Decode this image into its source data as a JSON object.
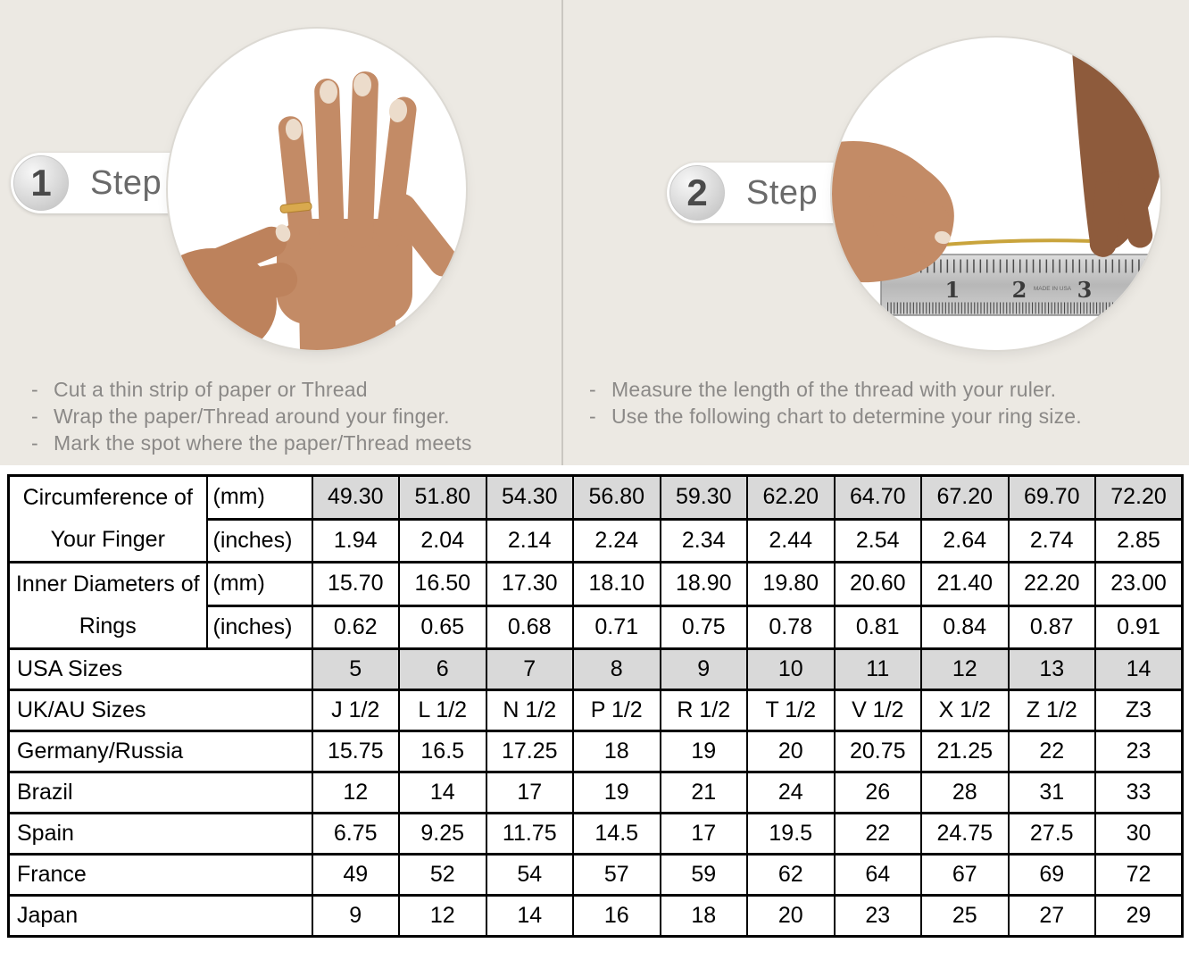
{
  "page": {
    "top_background": "#ece9e3",
    "divider_color": "#cac7c1",
    "shaded_cell_color": "#d9d9d9",
    "thread_gold_color": "#c9a43c"
  },
  "steps": [
    {
      "number": "1",
      "label": "Step",
      "photo": "hand-with-ring-being-measured",
      "bullets": [
        "Cut a thin strip of paper or Thread",
        "Wrap the paper/Thread around your finger.",
        "Mark the spot where the paper/Thread meets"
      ]
    },
    {
      "number": "2",
      "label": "Step",
      "photo": "measuring-thread-length-with-ruler",
      "ruler": {
        "numbers": [
          "1",
          "2",
          "3"
        ],
        "brand": "MADE IN USA"
      },
      "bullets": [
        "Measure the length of the thread with your ruler.",
        "Use the following chart to determine your ring size."
      ]
    }
  ],
  "table": {
    "rows": [
      {
        "group": "Circumference of Your Finger",
        "group_rowspan": 2,
        "unit": "(mm)",
        "shaded": true,
        "values": [
          "49.30",
          "51.80",
          "54.30",
          "56.80",
          "59.30",
          "62.20",
          "64.70",
          "67.20",
          "69.70",
          "72.20"
        ]
      },
      {
        "unit": "(inches)",
        "shaded": false,
        "values": [
          "1.94",
          "2.04",
          "2.14",
          "2.24",
          "2.34",
          "2.44",
          "2.54",
          "2.64",
          "2.74",
          "2.85"
        ]
      },
      {
        "group": "Inner Diameters of Rings",
        "group_rowspan": 2,
        "unit": "(mm)",
        "shaded": false,
        "values": [
          "15.70",
          "16.50",
          "17.30",
          "18.10",
          "18.90",
          "19.80",
          "20.60",
          "21.40",
          "22.20",
          "23.00"
        ]
      },
      {
        "unit": "(inches)",
        "shaded": false,
        "values": [
          "0.62",
          "0.65",
          "0.68",
          "0.71",
          "0.75",
          "0.78",
          "0.81",
          "0.84",
          "0.87",
          "0.91"
        ]
      },
      {
        "label": "USA Sizes",
        "shaded": true,
        "values": [
          "5",
          "6",
          "7",
          "8",
          "9",
          "10",
          "11",
          "12",
          "13",
          "14"
        ]
      },
      {
        "label": "UK/AU Sizes",
        "shaded": false,
        "values": [
          "J 1/2",
          "L 1/2",
          "N 1/2",
          "P 1/2",
          "R 1/2",
          "T 1/2",
          "V 1/2",
          "X 1/2",
          "Z 1/2",
          "Z3"
        ]
      },
      {
        "label": "Germany/Russia",
        "shaded": false,
        "values": [
          "15.75",
          "16.5",
          "17.25",
          "18",
          "19",
          "20",
          "20.75",
          "21.25",
          "22",
          "23"
        ]
      },
      {
        "label": "Brazil",
        "shaded": false,
        "values": [
          "12",
          "14",
          "17",
          "19",
          "21",
          "24",
          "26",
          "28",
          "31",
          "33"
        ]
      },
      {
        "label": "Spain",
        "shaded": false,
        "values": [
          "6.75",
          "9.25",
          "11.75",
          "14.5",
          "17",
          "19.5",
          "22",
          "24.75",
          "27.5",
          "30"
        ]
      },
      {
        "label": "France",
        "shaded": false,
        "values": [
          "49",
          "52",
          "54",
          "57",
          "59",
          "62",
          "64",
          "67",
          "69",
          "72"
        ]
      },
      {
        "label": "Japan",
        "shaded": false,
        "values": [
          "9",
          "12",
          "14",
          "16",
          "18",
          "20",
          "23",
          "25",
          "27",
          "29"
        ]
      }
    ]
  }
}
